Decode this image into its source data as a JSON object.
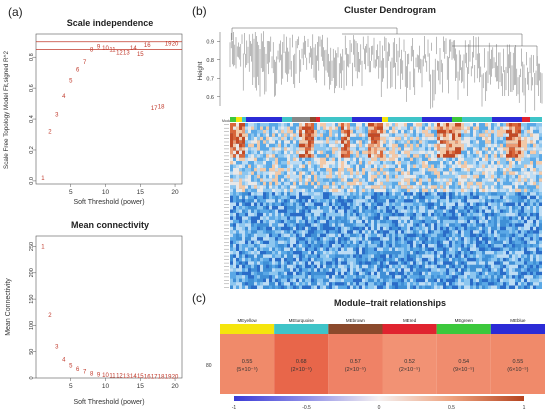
{
  "panels": {
    "a_label": "(a)",
    "b_label": "(b)",
    "c_label": "(c)"
  },
  "scale_independence": {
    "title": "Scale independence",
    "xlabel": "Soft Threshold (power)",
    "ylabel": "Scale Free Topology Model Fit,signed R^2",
    "x_ticks": [
      "5",
      "10",
      "15",
      "20"
    ],
    "y_ticks": [
      "0.0",
      "0.2",
      "0.4",
      "0.6",
      "0.8"
    ],
    "line_color": "#c0392b",
    "point_color": "#c0392b"
  },
  "mean_connectivity": {
    "title": "Mean connectivity",
    "xlabel": "Soft Threshold (power)",
    "ylabel": "Mean Connectivity",
    "x_ticks": [
      "5",
      "10",
      "15",
      "20"
    ],
    "y_ticks": [
      "0",
      "50",
      "100",
      "150",
      "200",
      "250"
    ]
  },
  "dendrogram": {
    "title": "Cluster Dendrogram",
    "ylabel": "Height",
    "y_ticks": [
      "0.9",
      "0.8",
      "0.7",
      "0.6"
    ],
    "module_bar_label": "Module"
  },
  "module_trait": {
    "title": "Module–trait relationships",
    "row_label": "80",
    "modules": [
      {
        "name": "MEyellow",
        "color": "#f5e50c",
        "corr": "0.55",
        "p": "(5×10⁻⁵)",
        "cell": "#f08a6a"
      },
      {
        "name": "MEturquoise",
        "color": "#3fc4c8",
        "corr": "0.68",
        "p": "(2×10⁻⁵)",
        "cell": "#e8664a"
      },
      {
        "name": "MEbrown",
        "color": "#8b4a2c",
        "corr": "0.57",
        "p": "(2×10⁻⁵)",
        "cell": "#ef8266"
      },
      {
        "name": "MEred",
        "color": "#e0232f",
        "corr": "0.52",
        "p": "(2×10⁻⁵)",
        "cell": "#f29274"
      },
      {
        "name": "MEgreen",
        "color": "#3cc83c",
        "corr": "0.54",
        "p": "(9×10⁻⁵)",
        "cell": "#f08c6e"
      },
      {
        "name": "MEblue",
        "color": "#2b2bd6",
        "corr": "0.55",
        "p": "(6×10⁻⁵)",
        "cell": "#f08a6a"
      }
    ],
    "legend_ticks": [
      "-1",
      "-0.5",
      "0",
      "0.5",
      "1"
    ]
  },
  "chart_data": [
    {
      "type": "scatter",
      "title": "Scale independence",
      "xlabel": "Soft Threshold (power)",
      "ylabel": "Scale Free Topology Model Fit,signed R^2",
      "xlim": [
        0,
        21
      ],
      "ylim": [
        -0.02,
        0.95
      ],
      "reference_lines_y": [
        0.9,
        0.85
      ],
      "x": [
        1,
        2,
        3,
        4,
        5,
        6,
        7,
        8,
        9,
        10,
        11,
        12,
        13,
        14,
        15,
        16,
        17,
        18,
        19,
        20
      ],
      "y": [
        0.02,
        0.32,
        0.43,
        0.55,
        0.65,
        0.72,
        0.77,
        0.85,
        0.87,
        0.86,
        0.85,
        0.83,
        0.83,
        0.86,
        0.82,
        0.88,
        0.47,
        0.48,
        0.89,
        0.89
      ],
      "labels": [
        "1",
        "2",
        "3",
        "4",
        "5",
        "6",
        "7",
        "8",
        "9",
        "10",
        "11",
        "12",
        "13",
        "14",
        "15",
        "16",
        "17",
        "18",
        "19",
        "20"
      ]
    },
    {
      "type": "scatter",
      "title": "Mean connectivity",
      "xlabel": "Soft Threshold (power)",
      "ylabel": "Mean Connectivity",
      "xlim": [
        0,
        21
      ],
      "ylim": [
        0,
        270
      ],
      "x": [
        1,
        2,
        3,
        4,
        5,
        6,
        7,
        8,
        9,
        10,
        11,
        12,
        13,
        14,
        15,
        16,
        17,
        18,
        19,
        20
      ],
      "y": [
        250,
        120,
        60,
        35,
        24,
        17,
        12,
        9,
        7,
        6,
        5,
        5,
        4,
        4,
        4,
        3,
        3,
        3,
        3,
        3
      ],
      "labels": [
        "1",
        "2",
        "3",
        "4",
        "5",
        "6",
        "7",
        "8",
        "9",
        "10",
        "11",
        "12",
        "13",
        "14",
        "15",
        "16",
        "17",
        "18",
        "19",
        "20"
      ]
    },
    {
      "type": "heatmap",
      "title": "Module–trait relationships",
      "rows": [
        "80"
      ],
      "columns": [
        "MEyellow",
        "MEturquoise",
        "MEbrown",
        "MEred",
        "MEgreen",
        "MEblue"
      ],
      "values": [
        [
          0.55,
          0.68,
          0.57,
          0.52,
          0.54,
          0.55
        ]
      ],
      "pvalues": [
        "(5×10⁻⁵)",
        "(2×10⁻⁵)",
        "(2×10⁻⁵)",
        "(2×10⁻⁵)",
        "(9×10⁻⁵)",
        "(6×10⁻⁵)"
      ],
      "color_range": [
        -1,
        1
      ]
    }
  ]
}
